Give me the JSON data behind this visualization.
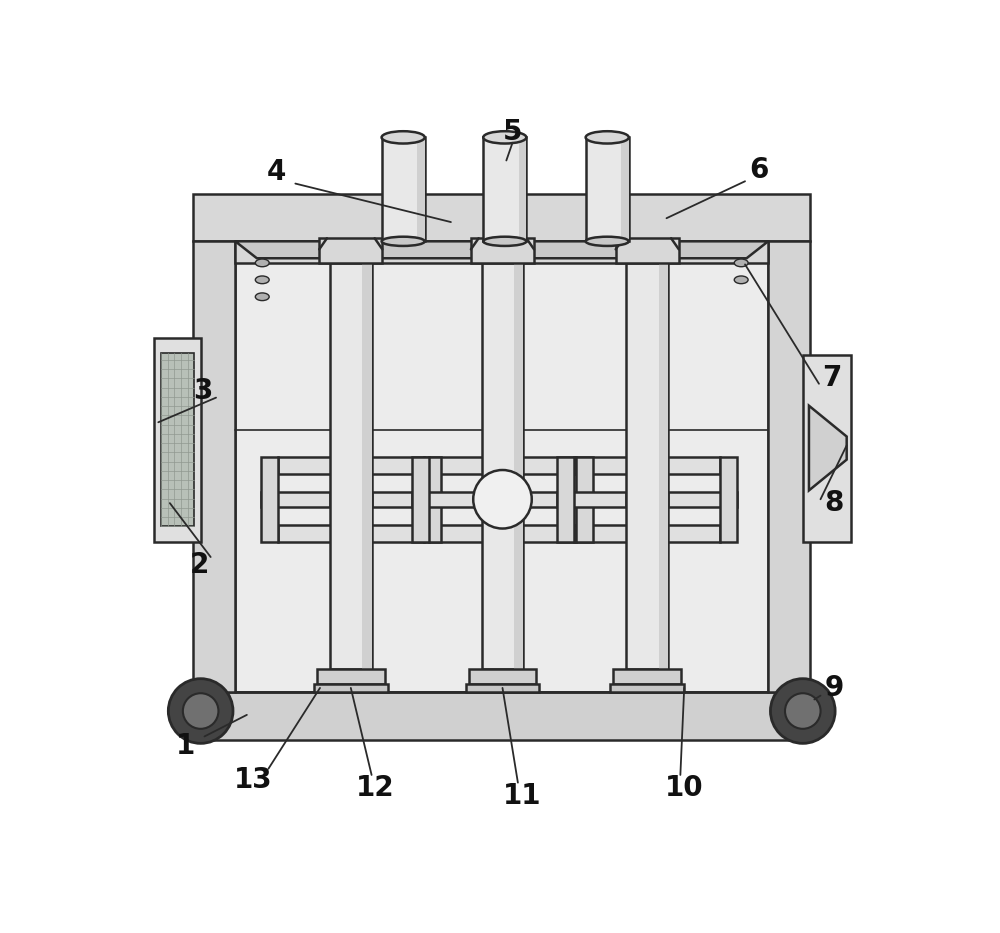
{
  "bg": "#ffffff",
  "lc": "#2a2a2a",
  "fc_outer": "#e8e8e8",
  "fc_inner": "#f2f2f2",
  "fc_dark": "#c8c8c8",
  "fc_mid": "#d8d8d8",
  "figsize": [
    10.0,
    9.33
  ],
  "dpi": 100,
  "label_fs": 20,
  "label_color": "#111111"
}
